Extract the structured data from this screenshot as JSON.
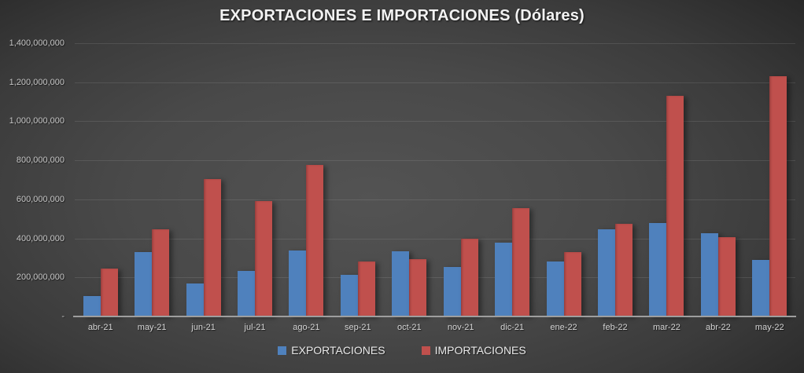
{
  "chart_data": {
    "type": "bar",
    "title": "EXPORTACIONES E IMPORTACIONES (Dólares)",
    "categories": [
      "abr-21",
      "may-21",
      "jun-21",
      "jul-21",
      "ago-21",
      "sep-21",
      "oct-21",
      "nov-21",
      "dic-21",
      "ene-22",
      "feb-22",
      "mar-22",
      "abr-22",
      "may-22"
    ],
    "series": [
      {
        "name": "EXPORTACIONES",
        "color": "#4F81BD",
        "values": [
          105000000,
          330000000,
          170000000,
          235000000,
          340000000,
          215000000,
          335000000,
          255000000,
          380000000,
          280000000,
          445000000,
          480000000,
          425000000,
          290000000
        ]
      },
      {
        "name": "IMPORTACIONES",
        "color": "#C0504D",
        "values": [
          245000000,
          445000000,
          705000000,
          590000000,
          775000000,
          280000000,
          295000000,
          400000000,
          555000000,
          330000000,
          475000000,
          1130000000,
          405000000,
          1230000000
        ]
      }
    ],
    "y_axis": {
      "min": 0,
      "max": 1400000000,
      "tick_interval": 200000000,
      "ticks": [
        {
          "value": 1400000000,
          "label": "1,400,000,000"
        },
        {
          "value": 1200000000,
          "label": "1,200,000,000"
        },
        {
          "value": 1000000000,
          "label": "1,000,000,000"
        },
        {
          "value": 800000000,
          "label": "800,000,000"
        },
        {
          "value": 600000000,
          "label": "600,000,000"
        },
        {
          "value": 400000000,
          "label": "400,000,000"
        },
        {
          "value": 200000000,
          "label": "200,000,000"
        },
        {
          "value": 0,
          "label": "-"
        }
      ]
    },
    "grid": true,
    "legend_position": "bottom"
  },
  "colors": {
    "background_center": "#4F4F4F",
    "background_edge": "#232323",
    "gridline": "rgba(255,255,255,0.10)",
    "axis_line": "#9E9E9E",
    "title_text": "#F2F2F2",
    "tick_label_text": "#C6C6C6",
    "legend_text": "#EAEAEA",
    "exportaciones": "#4F81BD",
    "importaciones": "#C0504D"
  }
}
